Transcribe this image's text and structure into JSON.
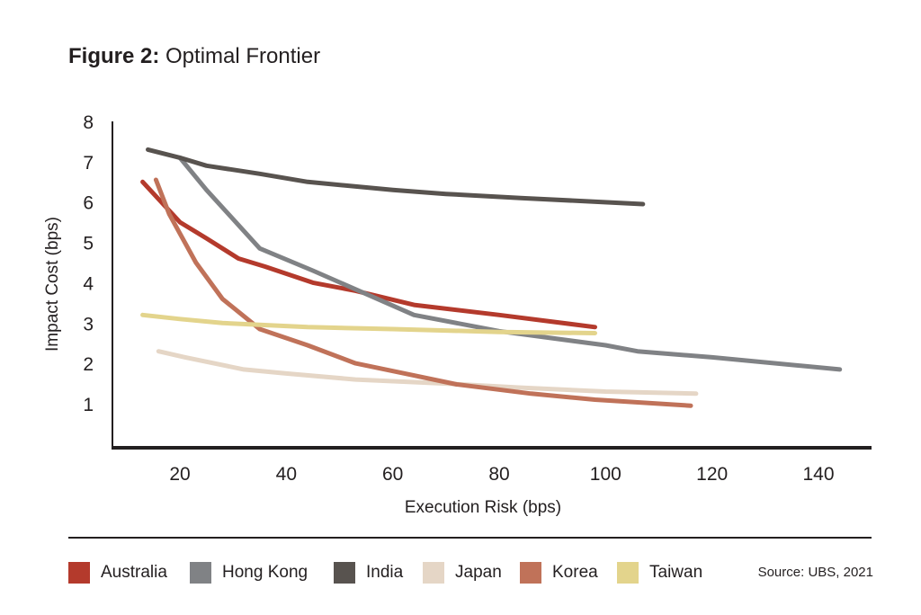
{
  "figure": {
    "label": "Figure 2:",
    "title": "Optimal Frontier",
    "source": "Source: UBS, 2021"
  },
  "chart_data": {
    "type": "line",
    "title": "Optimal Frontier",
    "xlabel": "Execution Risk (bps)",
    "ylabel": "Impact Cost (bps)",
    "xlim": [
      7,
      150
    ],
    "ylim": [
      0,
      8
    ],
    "xticks": [
      20,
      40,
      60,
      80,
      100,
      120,
      140
    ],
    "yticks": [
      1,
      2,
      3,
      4,
      5,
      6,
      7,
      8
    ],
    "grid": false,
    "legend_position": "bottom",
    "series": [
      {
        "name": "Australia",
        "color": "#b43a2c",
        "points": [
          [
            13,
            6.5
          ],
          [
            20,
            5.5
          ],
          [
            25,
            5.1
          ],
          [
            31,
            4.6
          ],
          [
            36,
            4.4
          ],
          [
            45,
            4.0
          ],
          [
            53,
            3.8
          ],
          [
            64,
            3.45
          ],
          [
            80,
            3.2
          ],
          [
            98,
            2.9
          ]
        ]
      },
      {
        "name": "Hong Kong",
        "color": "#808285",
        "points": [
          [
            20,
            7.1
          ],
          [
            25,
            6.3
          ],
          [
            35,
            4.85
          ],
          [
            45,
            4.3
          ],
          [
            64,
            3.2
          ],
          [
            80,
            2.8
          ],
          [
            100,
            2.45
          ],
          [
            106,
            2.3
          ],
          [
            120,
            2.15
          ],
          [
            144,
            1.85
          ]
        ]
      },
      {
        "name": "India",
        "color": "#58534f",
        "points": [
          [
            14,
            7.3
          ],
          [
            20,
            7.1
          ],
          [
            25,
            6.9
          ],
          [
            35,
            6.7
          ],
          [
            44,
            6.5
          ],
          [
            60,
            6.3
          ],
          [
            70,
            6.2
          ],
          [
            84,
            6.1
          ],
          [
            107,
            5.95
          ]
        ]
      },
      {
        "name": "Japan",
        "color": "#e5d6c6",
        "points": [
          [
            16,
            2.3
          ],
          [
            21,
            2.15
          ],
          [
            32,
            1.85
          ],
          [
            40,
            1.75
          ],
          [
            53,
            1.6
          ],
          [
            70,
            1.5
          ],
          [
            84,
            1.4
          ],
          [
            100,
            1.3
          ],
          [
            117,
            1.25
          ]
        ]
      },
      {
        "name": "Korea",
        "color": "#c07259",
        "points": [
          [
            15.5,
            6.55
          ],
          [
            18,
            5.7
          ],
          [
            23,
            4.5
          ],
          [
            28,
            3.6
          ],
          [
            35,
            2.85
          ],
          [
            44,
            2.45
          ],
          [
            53,
            2.0
          ],
          [
            64,
            1.7
          ],
          [
            72,
            1.48
          ],
          [
            86,
            1.25
          ],
          [
            98,
            1.1
          ],
          [
            116,
            0.95
          ]
        ]
      },
      {
        "name": "Taiwan",
        "color": "#e3d48c",
        "points": [
          [
            13,
            3.2
          ],
          [
            20,
            3.1
          ],
          [
            28,
            3.0
          ],
          [
            44,
            2.9
          ],
          [
            60,
            2.85
          ],
          [
            80,
            2.78
          ],
          [
            98,
            2.75
          ]
        ]
      }
    ]
  }
}
